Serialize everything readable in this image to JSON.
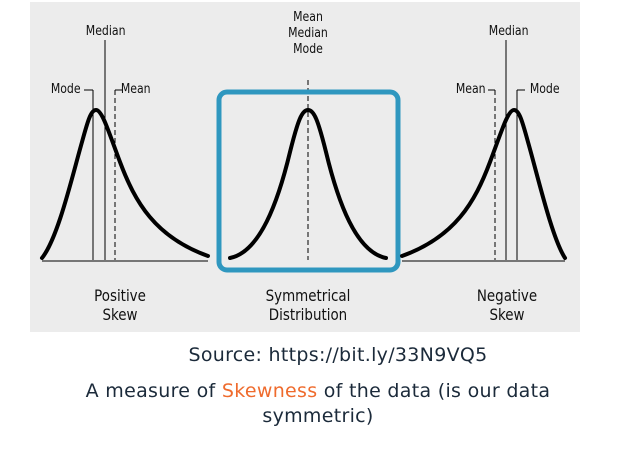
{
  "labels": {
    "left": {
      "median": "Median",
      "mode": "Mode",
      "mean": "Mean",
      "caption_line1": "Positive",
      "caption_line2": "Skew"
    },
    "center": {
      "mean": "Mean",
      "median": "Median",
      "mode": "Mode",
      "caption_line1": "Symmetrical",
      "caption_line2": "Distribution"
    },
    "right": {
      "median": "Median",
      "mean": "Mean",
      "mode": "Mode",
      "caption_line1": "Negative",
      "caption_line2": "Skew"
    }
  },
  "source": "Source: https://bit.ly/33N9VQ5",
  "description": {
    "before": "A measure of ",
    "highlight": "Skewness",
    "after": " of the data (is our data symmetric)"
  },
  "colors": {
    "highlight_box": "#2f97bf",
    "accent_text": "#ef6b2d",
    "background": "#ececec"
  }
}
